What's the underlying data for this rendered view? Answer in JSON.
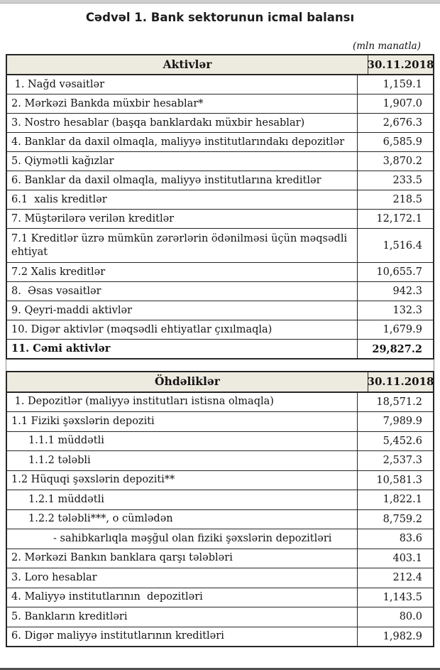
{
  "document": {
    "title": "Cədvəl 1. Bank sektorunun icmal balansı",
    "unit_note": "(mln manatla)"
  },
  "colors": {
    "header_bg": "#edeadf",
    "table_border": "#262626",
    "top_bar": "#cfcfcf",
    "bottom_bar": "#4f4f4f"
  },
  "tables": [
    {
      "id": "assets",
      "header": {
        "label": "Aktivlər",
        "date": "30.11.2018"
      },
      "rows": [
        {
          "label": " 1. Nağd vəsaitlər",
          "value": "1,159.1"
        },
        {
          "label": "2. Mərkəzi Bankda müxbir hesablar*",
          "value": "1,907.0"
        },
        {
          "label": "3. Nostro hesablar (başqa banklardakı müxbir hesablar)",
          "value": "2,676.3"
        },
        {
          "label": "4. Banklar da daxil olmaqla, maliyyə institutlarındakı depozitlər",
          "value": "6,585.9"
        },
        {
          "label": "5. Qiymətli kağızlar",
          "value": "3,870.2"
        },
        {
          "label": "6. Banklar da daxil olmaqla, maliyyə institutlarına kreditlər",
          "value": "233.5"
        },
        {
          "label": "6.1  xalis kreditlər",
          "value": "218.5"
        },
        {
          "label": "7. Müştərilərə verilən kreditlər",
          "value": "12,172.1"
        },
        {
          "label": "7.1 Kreditlər üzrə mümkün zərərlərin ödənilməsi üçün məqsədli ehtiyat",
          "value": "1,516.4",
          "tall": true
        },
        {
          "label": "7.2 Xalis kreditlər",
          "value": "10,655.7"
        },
        {
          "label": "8.  Əsas vəsaitlər",
          "value": "942.3"
        },
        {
          "label": "9. Qeyri-maddi aktivlər",
          "value": "132.3"
        },
        {
          "label": "10. Digər aktivlər (məqsədli ehtiyatlar çıxılmaqla)",
          "value": "1,679.9"
        },
        {
          "label": "11. Cəmi aktivlər",
          "value": "29,827.2",
          "bold": true
        }
      ]
    },
    {
      "id": "liabilities",
      "header": {
        "label": "Öhdəliklər",
        "date": "30.11.2018"
      },
      "rows": [
        {
          "label": " 1. Depozitlər (maliyyə institutları istisna olmaqla)",
          "value": "18,571.2"
        },
        {
          "label": "1.1 Fiziki şəxslərin depoziti",
          "value": "7,989.9"
        },
        {
          "label": "1.1.1 müddətli",
          "value": "5,452.6",
          "indent": 1
        },
        {
          "label": "1.1.2 tələbli",
          "value": "2,537.3",
          "indent": 1
        },
        {
          "label": "1.2 Hüquqi şəxslərin depoziti**",
          "value": "10,581.3"
        },
        {
          "label": "1.2.1 müddətli",
          "value": "1,822.1",
          "indent": 1
        },
        {
          "label": "1.2.2 tələbli***, o cümlədən",
          "value": "8,759.2",
          "indent": 1
        },
        {
          "label": "- sahibkarlıqla məşğul olan fiziki şəxslərin depozitləri",
          "value": "83.6",
          "indent": 2
        },
        {
          "label": "2. Mərkəzi Bankın banklara qarşı tələbləri",
          "value": "403.1"
        },
        {
          "label": "3. Loro hesablar",
          "value": "212.4"
        },
        {
          "label": "4. Maliyyə institutlarının  depozitləri",
          "value": "1,143.5"
        },
        {
          "label": "5. Bankların kreditləri",
          "value": "80.0"
        },
        {
          "label": "6. Digər maliyyə institutlarının kreditləri",
          "value": "1,982.9"
        }
      ]
    }
  ]
}
